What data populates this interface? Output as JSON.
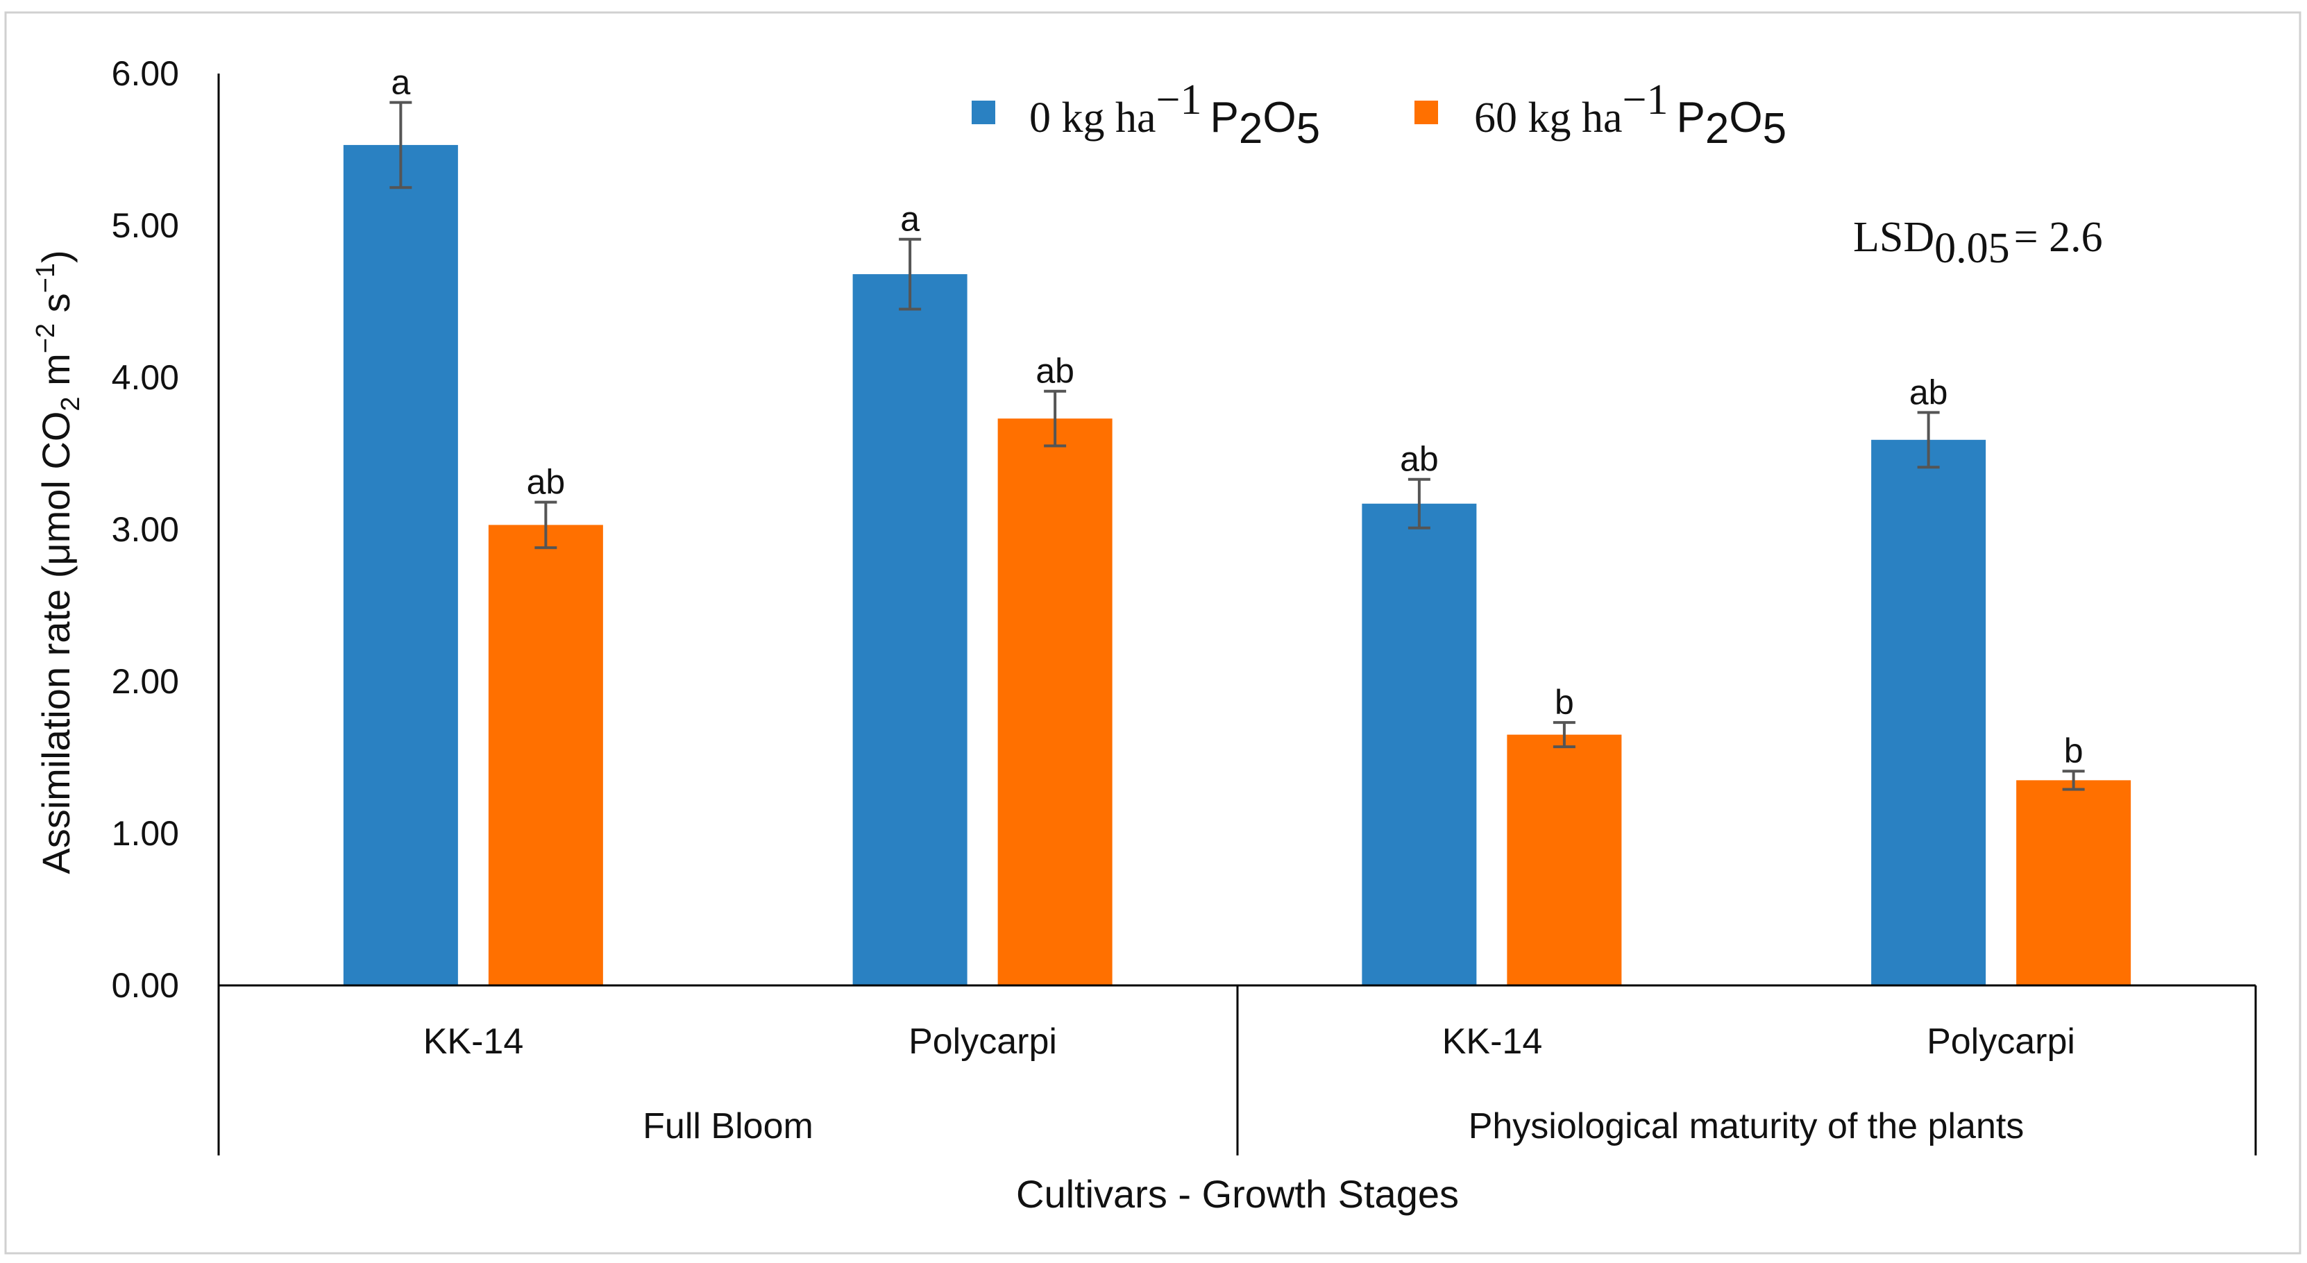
{
  "chart_data": {
    "type": "bar",
    "ylabel": "Assimilation rate (μmol CO2 m−2 s−1)",
    "ylabel_parts": {
      "pre": "Assimilation rate (μmol CO",
      "sub_co2": "2",
      "mid": " m",
      "sup_m": "−2",
      "mid2": " s",
      "sup_s": "−1",
      "post": ")"
    },
    "xlabel": "Cultivars - Growth Stages",
    "ylim": [
      0,
      6
    ],
    "yticks": [
      "0.00",
      "1.00",
      "2.00",
      "3.00",
      "4.00",
      "5.00",
      "6.00"
    ],
    "ytick_values": [
      0,
      1,
      2,
      3,
      4,
      5,
      6
    ],
    "categories": [
      "KK-14",
      "Polycarpi",
      "KK-14",
      "Polycarpi"
    ],
    "groups": [
      {
        "label": "Full Bloom",
        "span": [
          0,
          1
        ]
      },
      {
        "label": "Physiological maturity of the plants",
        "span": [
          2,
          3
        ]
      }
    ],
    "series": [
      {
        "name": "0 kg ha−1 P2O5",
        "legend_parts": {
          "pre": "0 kg ha",
          "sup": "−1",
          "p": "P",
          "sub1": "2",
          "o": "O",
          "sub2": "5"
        },
        "color": "#2A81C2",
        "values": [
          5.53,
          4.68,
          3.17,
          3.59
        ],
        "errors": [
          0.28,
          0.23,
          0.16,
          0.18
        ],
        "letters": [
          "a",
          "a",
          "ab",
          "ab"
        ]
      },
      {
        "name": "60 kg ha−1 P2O5",
        "legend_parts": {
          "pre": "60 kg ha",
          "sup": "−1",
          "p": "P",
          "sub1": "2",
          "o": "O",
          "sub2": "5"
        },
        "color": "#FF7000",
        "values": [
          3.03,
          3.73,
          1.65,
          1.35
        ],
        "errors": [
          0.15,
          0.18,
          0.08,
          0.06
        ],
        "letters": [
          "ab",
          "ab",
          "b",
          "b"
        ]
      }
    ],
    "annotation": {
      "text": "LSD0.05 = 2.6",
      "main": "LSD",
      "sub": "0.05",
      "post": "= 2.6"
    },
    "legend_position": "top-center",
    "grid": false
  }
}
